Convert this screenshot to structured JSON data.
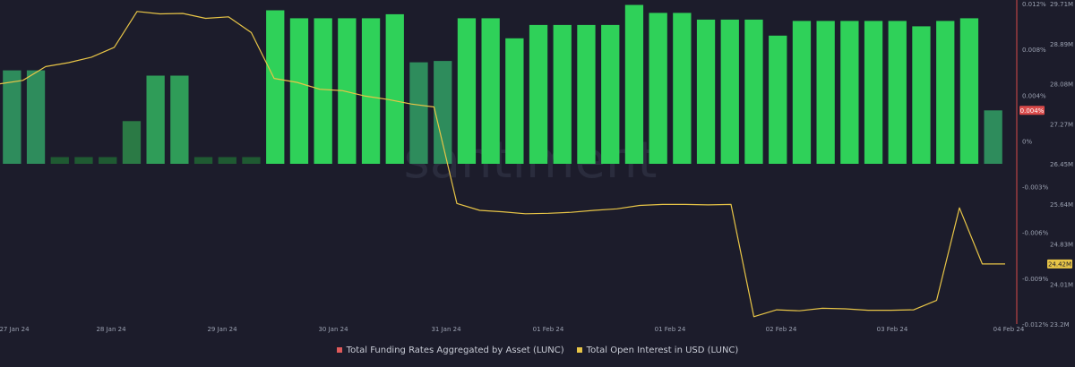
{
  "chart_data": {
    "type": "bar+line",
    "watermark": "santiment",
    "x_tick_labels": [
      "27 Jan 24",
      "28 Jan 24",
      "29 Jan 24",
      "30 Jan 24",
      "31 Jan 24",
      "01 Feb 24",
      "01 Feb 24",
      "02 Feb 24",
      "03 Feb 24",
      "04 Feb 24"
    ],
    "series": [
      {
        "name": "Total Funding Rates Aggregated by Asset (LUNC)",
        "type": "bar",
        "color": "#e05a5a",
        "axis_ticks": [
          "0.012%",
          "0.008%",
          "0.004%",
          "0%",
          "-0.003%",
          "-0.006%",
          "-0.009%",
          "-0.012%"
        ],
        "ylim": [
          -0.012,
          0.012
        ],
        "last_value_label": "0.004%",
        "values": [
          0.007,
          0.007,
          0.0005,
          0.0005,
          0.0005,
          0.0032,
          0.0066,
          0.0066,
          0.0005,
          0.0005,
          0.0005,
          0.0115,
          0.0109,
          0.0109,
          0.0109,
          0.0109,
          0.0112,
          0.0076,
          0.0077,
          0.0109,
          0.0109,
          0.0094,
          0.0104,
          0.0104,
          0.0104,
          0.0104,
          0.0119,
          0.0113,
          0.0113,
          0.0108,
          0.0108,
          0.0108,
          0.0096,
          0.0107,
          0.0107,
          0.0107,
          0.0107,
          0.0107,
          0.0103,
          0.0107,
          0.0109,
          0.004
        ],
        "bar_colors": [
          "#2e8c5c",
          "#2e8c5c",
          "#1f5a32",
          "#1f5a32",
          "#1f5a32",
          "#2b7a45",
          "#2f9c58",
          "#2f9c58",
          "#1f5a32",
          "#1f5a32",
          "#1f5a32",
          "#2fd159",
          "#2fd159",
          "#2fd159",
          "#2fd159",
          "#2fd159",
          "#2fd159",
          "#2e8c5c",
          "#2e8c5c",
          "#2fd159",
          "#2fd159",
          "#2fd159",
          "#2fd159",
          "#2fd159",
          "#2fd159",
          "#2fd159",
          "#2fd159",
          "#2fd159",
          "#2fd159",
          "#2fd159",
          "#2fd159",
          "#2fd159",
          "#2fd159",
          "#2fd159",
          "#2fd159",
          "#2fd159",
          "#2fd159",
          "#2fd159",
          "#2fd159",
          "#2fd159",
          "#2fd159",
          "#2e8c5c"
        ]
      },
      {
        "name": "Total Open Interest in USD (LUNC)",
        "type": "line",
        "color": "#e8c547",
        "axis_ticks": [
          "29.71M",
          "28.89M",
          "28.08M",
          "27.27M",
          "26.45M",
          "25.64M",
          "24.83M",
          "24.01M",
          "23.2M"
        ],
        "ylim": [
          23.2,
          29.71
        ],
        "last_value_label": "24.42M",
        "values": [
          28.08,
          28.15,
          28.43,
          28.51,
          28.62,
          28.82,
          29.55,
          29.5,
          29.51,
          29.41,
          29.44,
          29.12,
          28.19,
          28.11,
          27.97,
          27.94,
          27.83,
          27.76,
          27.67,
          27.61,
          25.65,
          25.51,
          25.48,
          25.44,
          25.45,
          25.47,
          25.51,
          25.54,
          25.61,
          25.63,
          25.63,
          25.62,
          25.63,
          23.35,
          23.49,
          23.47,
          23.52,
          23.51,
          23.48,
          23.48,
          23.49,
          23.68,
          25.56,
          24.42,
          24.42
        ]
      }
    ]
  }
}
